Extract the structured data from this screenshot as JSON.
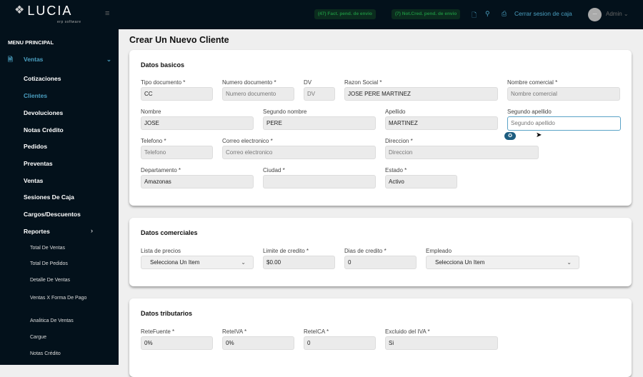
{
  "header": {
    "logo": "LUCIA",
    "logo_sub": "erp software",
    "badge1": "(47) Fact. pend. de envio",
    "badge2": "(7) Not.Cred. pend. de envio",
    "cash_link": "Cerrar sesion de caja",
    "user": "Admin",
    "avatar": "---"
  },
  "sidebar": {
    "title": "MENU PRINCIPAL",
    "group": "Ventas",
    "items": [
      "Cotizaciones",
      "Clientes",
      "Devoluciones",
      "Notas Crédito",
      "Pedidos",
      "Preventas",
      "Ventas",
      "Sesiones De Caja",
      "Cargos/Descuentos",
      "Reportes"
    ],
    "sub": [
      "Total De Ventas",
      "Total De Pedidos",
      "Detalle De Ventas",
      "Ventas X Forma De Pago",
      "Analitica De Ventas",
      "Cargue",
      "Notas Crédito"
    ],
    "active_color": "#4a9fc0"
  },
  "page": {
    "title": "Crear Un Nuevo Cliente"
  },
  "basic": {
    "title": "Datos basicos",
    "fields": [
      {
        "label": "Tipo documento *",
        "value": "CC"
      },
      {
        "label": "Numero documento *",
        "placeholder": "Numero documento"
      },
      {
        "label": "DV",
        "placeholder": "DV"
      },
      {
        "label": "Razon Social *",
        "value": "JOSE PERE MARTINEZ"
      },
      {
        "label": "Nombre comercial *",
        "placeholder": "Nombre comercial"
      },
      {
        "label": "Nombre",
        "value": "JOSE"
      },
      {
        "label": "Segundo nombre",
        "value": "PERE"
      },
      {
        "label": "Apellido",
        "value": "MARTINEZ"
      },
      {
        "label": "Segundo apellido",
        "placeholder": "Segundo apellido"
      },
      {
        "label": "Telefono *",
        "placeholder": "Telefono"
      },
      {
        "label": "Correo electronico *",
        "placeholder": "Correo electronico"
      },
      {
        "label": "Direccion *",
        "placeholder": "Direccion"
      },
      {
        "label": "Departamento *",
        "value": "Amazonas"
      },
      {
        "label": "Ciudad *",
        "value": ""
      },
      {
        "label": "Estado *",
        "value": "Activo"
      }
    ]
  },
  "commercial": {
    "title": "Datos comerciales",
    "fields": [
      {
        "label": "Lista de precios",
        "value": "Selecciona Un Item"
      },
      {
        "label": "Limite de credito *",
        "value": "$0.00"
      },
      {
        "label": "Dias de credito *",
        "value": "0"
      },
      {
        "label": "Empleado",
        "value": "Selecciona Un Item"
      }
    ]
  },
  "tax": {
    "title": "Datos tributarios",
    "fields": [
      {
        "label": "ReteFuente *",
        "value": "0%"
      },
      {
        "label": "ReteIVA *",
        "value": "0%"
      },
      {
        "label": "ReteICA *",
        "value": "0"
      },
      {
        "label": "Excluido del IVA *",
        "value": "Si"
      }
    ]
  }
}
